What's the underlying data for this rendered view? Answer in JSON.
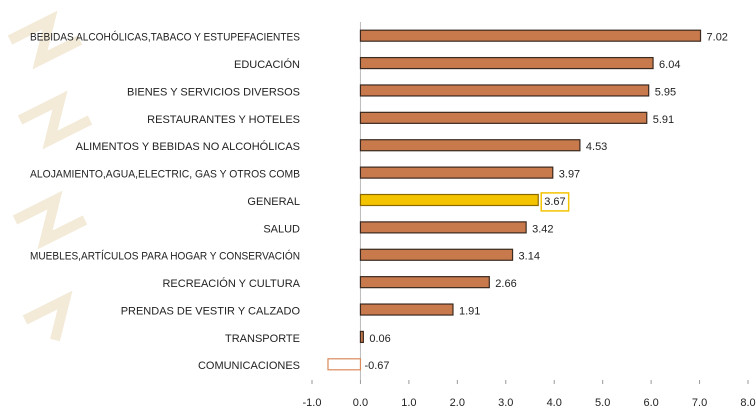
{
  "chart_data": {
    "type": "barh",
    "categories": [
      "BEBIDAS ALCOHÓLICAS,TABACO Y ESTUPEFACIENTES",
      "EDUCACIÓN",
      "BIENES Y SERVICIOS DIVERSOS",
      "RESTAURANTES Y HOTELES",
      "ALIMENTOS Y BEBIDAS NO ALCOHÓLICAS",
      "ALOJAMIENTO,AGUA,ELECTRIC, GAS Y OTROS COMB",
      "GENERAL",
      "SALUD",
      "MUEBLES,ARTÍCULOS PARA HOGAR Y CONSERVACIÓN",
      "RECREACIÓN Y CULTURA",
      "PRENDAS DE VESTIR Y CALZADO",
      "TRANSPORTE",
      "COMUNICACIONES"
    ],
    "values": [
      7.02,
      6.04,
      5.95,
      5.91,
      4.53,
      3.97,
      3.67,
      3.42,
      3.14,
      2.66,
      1.91,
      0.06,
      -0.67
    ],
    "colors": [
      "#c87a4c",
      "#c87a4c",
      "#c87a4c",
      "#c87a4c",
      "#c87a4c",
      "#c87a4c",
      "#f5c400",
      "#c87a4c",
      "#c87a4c",
      "#c87a4c",
      "#c87a4c",
      "#c87a4c",
      "#ffffff"
    ],
    "edge_colors": [
      "#3a2a20",
      "#3a2a20",
      "#3a2a20",
      "#3a2a20",
      "#3a2a20",
      "#3a2a20",
      "#8a6a00",
      "#3a2a20",
      "#3a2a20",
      "#3a2a20",
      "#3a2a20",
      "#3a2a20",
      "#d98a5a"
    ],
    "xlim": [
      -1,
      8
    ],
    "xticks": [
      {
        "value": -1,
        "label": "-1.0"
      },
      {
        "value": 0,
        "label": "0.0"
      },
      {
        "value": 1,
        "label": "1.0"
      },
      {
        "value": 2,
        "label": "2.0"
      },
      {
        "value": 3,
        "label": "3.0"
      },
      {
        "value": 4,
        "label": "4.0"
      },
      {
        "value": 5,
        "label": "5.0"
      },
      {
        "value": 6,
        "label": "6.0"
      },
      {
        "value": 7,
        "label": "7.0"
      },
      {
        "value": 8,
        "label": "8.0"
      }
    ],
    "grid": false
  }
}
